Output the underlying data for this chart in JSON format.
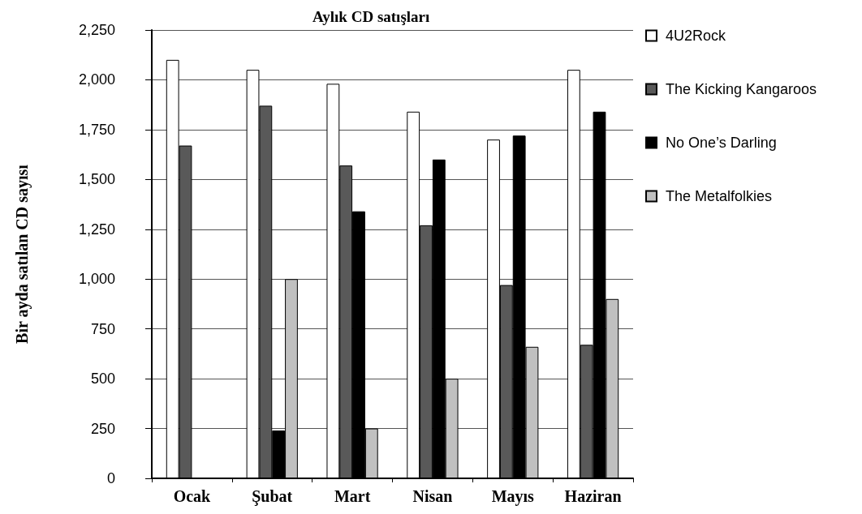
{
  "chart_data": {
    "type": "bar",
    "title": "Aylık CD satışları",
    "ylabel": "Bir ayda satılan CD sayısı",
    "categories": [
      "Ocak",
      "Şubat",
      "Mart",
      "Nisan",
      "Mayıs",
      "Haziran"
    ],
    "series": [
      {
        "name": "4U2Rock",
        "color": "#ffffff",
        "values": [
          2100,
          2050,
          1980,
          1840,
          1700,
          2050
        ]
      },
      {
        "name": "The Kicking Kangaroos",
        "color": "#595959",
        "values": [
          1670,
          1870,
          1570,
          1270,
          970,
          670
        ]
      },
      {
        "name": "No One’s Darling",
        "color": "#000000",
        "values": [
          null,
          240,
          1340,
          1600,
          1720,
          1840
        ]
      },
      {
        "name": "The Metalfolkies",
        "color": "#c0c0c0",
        "values": [
          null,
          1000,
          250,
          500,
          660,
          900
        ]
      }
    ],
    "ylim": [
      0,
      2250
    ],
    "yticks": [
      0,
      250,
      500,
      750,
      {
        "value": 1000,
        "label": "1,000"
      },
      {
        "value": 1250,
        "label": "1,250"
      },
      {
        "value": 1500,
        "label": "1,500"
      },
      {
        "value": 1750,
        "label": "1,750"
      },
      {
        "value": 2000,
        "label": "2,000"
      },
      {
        "value": 2250,
        "label": "2,250"
      }
    ],
    "grid": "y",
    "legend": "right"
  }
}
